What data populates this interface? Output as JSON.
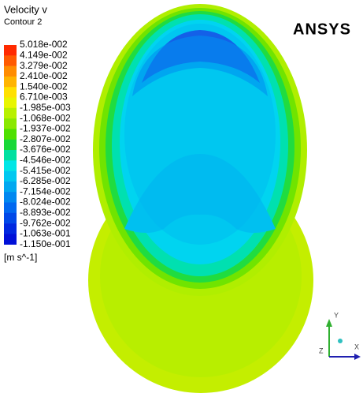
{
  "legend": {
    "title": "Velocity v",
    "subtitle": "Contour 2",
    "levels": [
      "5.018e-002",
      "4.149e-002",
      "3.279e-002",
      "2.410e-002",
      "1.540e-002",
      "6.710e-003",
      "-1.985e-003",
      "-1.068e-002",
      "-1.937e-002",
      "-2.807e-002",
      "-3.676e-002",
      "-4.546e-002",
      "-5.415e-002",
      "-6.285e-002",
      "-7.154e-002",
      "-8.024e-002",
      "-8.893e-002",
      "-9.762e-002",
      "-1.063e-001",
      "-1.150e-001"
    ],
    "colors": [
      "#ff2a00",
      "#ff5a00",
      "#ff8c00",
      "#ffb400",
      "#ffe000",
      "#e8f500",
      "#b8f000",
      "#8ae800",
      "#4ee000",
      "#18d838",
      "#00e0a0",
      "#00e6e6",
      "#00c8f0",
      "#00a8f0",
      "#0088f0",
      "#0068f0",
      "#0048e8",
      "#0028e0",
      "#0010d8"
    ],
    "unit": "[m s^-1]"
  },
  "logo": "ANSYS",
  "axes": {
    "y": "Y",
    "z": "Z",
    "x": "X"
  }
}
